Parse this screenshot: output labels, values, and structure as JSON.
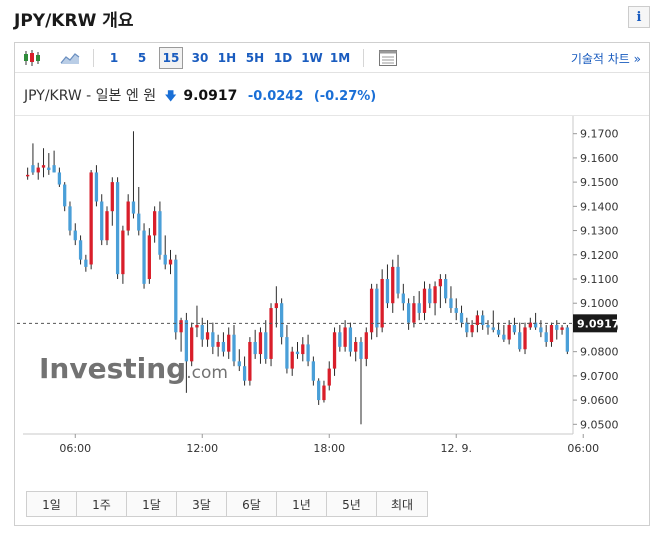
{
  "page": {
    "title": "JPY/KRW 개요",
    "info_label": "i"
  },
  "toolbar": {
    "icons": {
      "candlestick": "candlestick-icon",
      "area": "area-chart-icon",
      "layout": "layout-icon"
    },
    "timeframes": [
      {
        "label": "1",
        "active": false
      },
      {
        "label": "5",
        "active": false
      },
      {
        "label": "15",
        "active": true
      },
      {
        "label": "30",
        "active": false
      },
      {
        "label": "1H",
        "active": false
      },
      {
        "label": "5H",
        "active": false
      },
      {
        "label": "1D",
        "active": false
      },
      {
        "label": "1W",
        "active": false
      },
      {
        "label": "1M",
        "active": false
      }
    ],
    "technical_link": "기술적 차트 »"
  },
  "quote": {
    "name": "JPY/KRW - 일본 엔 원",
    "direction_icon": "arrow-down-icon",
    "price": "9.0917",
    "change": "-0.0242",
    "change_pct": "(-0.27%)"
  },
  "watermark": {
    "brand": "Investing",
    "suffix": ".com"
  },
  "colors": {
    "up": "#d91e2a",
    "down": "#4a9fd8",
    "current_price_bg": "#1a1a1a",
    "link": "#1a5cbf"
  },
  "chart_data": {
    "type": "candlestick",
    "ylim": [
      9.046,
      9.174
    ],
    "y_ticks": [
      "9.1700",
      "9.1600",
      "9.1500",
      "9.1400",
      "9.1300",
      "9.1200",
      "9.1100",
      "9.1000",
      "9.0900",
      "9.0800",
      "9.0700",
      "9.0600",
      "9.0500"
    ],
    "y_tick_values": [
      9.17,
      9.16,
      9.15,
      9.14,
      9.13,
      9.12,
      9.11,
      9.1,
      9.09,
      9.08,
      9.07,
      9.06,
      9.05
    ],
    "x_ticks": [
      "06:00",
      "12:00",
      "18:00",
      "12. 9.",
      "06:00"
    ],
    "x_tick_positions": [
      9,
      33,
      57,
      81,
      105
    ],
    "current_price": 9.0917,
    "current_price_label": "9.0917",
    "ohlc": [
      [
        9.153,
        9.156,
        9.151,
        9.153
      ],
      [
        9.157,
        9.166,
        9.153,
        9.154
      ],
      [
        9.154,
        9.158,
        9.151,
        9.156
      ],
      [
        9.156,
        9.164,
        9.152,
        9.157
      ],
      [
        9.156,
        9.162,
        9.153,
        9.155
      ],
      [
        9.157,
        9.163,
        9.154,
        9.154
      ],
      [
        9.154,
        9.156,
        9.148,
        9.149
      ],
      [
        9.149,
        9.15,
        9.138,
        9.14
      ],
      [
        9.14,
        9.142,
        9.128,
        9.13
      ],
      [
        9.13,
        9.133,
        9.124,
        9.126
      ],
      [
        9.126,
        9.128,
        9.116,
        9.118
      ],
      [
        9.118,
        9.12,
        9.113,
        9.115
      ],
      [
        9.116,
        9.155,
        9.114,
        9.154
      ],
      [
        9.154,
        9.157,
        9.14,
        9.142
      ],
      [
        9.142,
        9.145,
        9.124,
        9.126
      ],
      [
        9.126,
        9.14,
        9.124,
        9.138
      ],
      [
        9.138,
        9.152,
        9.132,
        9.15
      ],
      [
        9.15,
        9.152,
        9.11,
        9.112
      ],
      [
        9.112,
        9.132,
        9.108,
        9.13
      ],
      [
        9.13,
        9.145,
        9.128,
        9.142
      ],
      [
        9.142,
        9.171,
        9.135,
        9.137
      ],
      [
        9.137,
        9.148,
        9.128,
        9.13
      ],
      [
        9.13,
        9.133,
        9.106,
        9.108
      ],
      [
        9.11,
        9.131,
        9.108,
        9.128
      ],
      [
        9.128,
        9.14,
        9.125,
        9.138
      ],
      [
        9.138,
        9.142,
        9.118,
        9.12
      ],
      [
        9.12,
        9.128,
        9.114,
        9.116
      ],
      [
        9.116,
        9.122,
        9.112,
        9.118
      ],
      [
        9.118,
        9.12,
        9.085,
        9.088
      ],
      [
        9.088,
        9.094,
        9.08,
        9.093
      ],
      [
        9.093,
        9.096,
        9.063,
        9.076
      ],
      [
        9.076,
        9.092,
        9.074,
        9.09
      ],
      [
        9.09,
        9.099,
        9.086,
        9.091
      ],
      [
        9.091,
        9.094,
        9.082,
        9.085
      ],
      [
        9.085,
        9.093,
        9.082,
        9.088
      ],
      [
        9.088,
        9.092,
        9.079,
        9.082
      ],
      [
        9.082,
        9.087,
        9.078,
        9.084
      ],
      [
        9.084,
        9.088,
        9.078,
        9.08
      ],
      [
        9.08,
        9.09,
        9.077,
        9.087
      ],
      [
        9.087,
        9.091,
        9.074,
        9.076
      ],
      [
        9.076,
        9.081,
        9.072,
        9.074
      ],
      [
        9.074,
        9.078,
        9.066,
        9.068
      ],
      [
        9.068,
        9.086,
        9.066,
        9.084
      ],
      [
        9.084,
        9.089,
        9.077,
        9.079
      ],
      [
        9.079,
        9.09,
        9.075,
        9.088
      ],
      [
        9.088,
        9.093,
        9.075,
        9.077
      ],
      [
        9.077,
        9.1,
        9.074,
        9.098
      ],
      [
        9.098,
        9.107,
        9.09,
        9.1
      ],
      [
        9.1,
        9.102,
        9.083,
        9.086
      ],
      [
        9.086,
        9.091,
        9.071,
        9.073
      ],
      [
        9.073,
        9.082,
        9.07,
        9.08
      ],
      [
        9.08,
        9.084,
        9.077,
        9.079
      ],
      [
        9.079,
        9.086,
        9.076,
        9.083
      ],
      [
        9.083,
        9.087,
        9.074,
        9.076
      ],
      [
        9.076,
        9.078,
        9.066,
        9.068
      ],
      [
        9.068,
        9.069,
        9.058,
        9.06
      ],
      [
        9.06,
        9.068,
        9.059,
        9.066
      ],
      [
        9.066,
        9.076,
        9.064,
        9.073
      ],
      [
        9.073,
        9.09,
        9.07,
        9.088
      ],
      [
        9.088,
        9.091,
        9.08,
        9.082
      ],
      [
        9.082,
        9.093,
        9.08,
        9.09
      ],
      [
        9.09,
        9.092,
        9.078,
        9.08
      ],
      [
        9.08,
        9.086,
        9.076,
        9.084
      ],
      [
        9.084,
        9.086,
        9.05,
        9.077
      ],
      [
        9.077,
        9.09,
        9.074,
        9.088
      ],
      [
        9.088,
        9.108,
        9.085,
        9.106
      ],
      [
        9.106,
        9.108,
        9.086,
        9.09
      ],
      [
        9.09,
        9.114,
        9.088,
        9.11
      ],
      [
        9.11,
        9.116,
        9.098,
        9.1
      ],
      [
        9.1,
        9.118,
        9.096,
        9.115
      ],
      [
        9.115,
        9.12,
        9.102,
        9.104
      ],
      [
        9.104,
        9.108,
        9.097,
        9.1
      ],
      [
        9.1,
        9.102,
        9.089,
        9.092
      ],
      [
        9.092,
        9.103,
        9.09,
        9.1
      ],
      [
        9.1,
        9.105,
        9.093,
        9.096
      ],
      [
        9.096,
        9.109,
        9.093,
        9.106
      ],
      [
        9.106,
        9.108,
        9.098,
        9.1
      ],
      [
        9.1,
        9.109,
        9.095,
        9.107
      ],
      [
        9.107,
        9.112,
        9.098,
        9.11
      ],
      [
        9.11,
        9.112,
        9.1,
        9.102
      ],
      [
        9.102,
        9.107,
        9.096,
        9.098
      ],
      [
        9.098,
        9.102,
        9.093,
        9.096
      ],
      [
        9.096,
        9.099,
        9.09,
        9.092
      ],
      [
        9.092,
        9.094,
        9.086,
        9.088
      ],
      [
        9.088,
        9.093,
        9.086,
        9.091
      ],
      [
        9.091,
        9.097,
        9.088,
        9.095
      ],
      [
        9.095,
        9.097,
        9.089,
        9.091
      ],
      [
        9.091,
        9.093,
        9.087,
        9.09
      ],
      [
        9.09,
        9.097,
        9.088,
        9.089
      ],
      [
        9.089,
        9.092,
        9.086,
        9.087
      ],
      [
        9.087,
        9.091,
        9.084,
        9.085
      ],
      [
        9.085,
        9.093,
        9.083,
        9.091
      ],
      [
        9.091,
        9.094,
        9.087,
        9.088
      ],
      [
        9.088,
        9.092,
        9.08,
        9.081
      ],
      [
        9.081,
        9.092,
        9.079,
        9.09
      ],
      [
        9.09,
        9.094,
        9.089,
        9.092
      ],
      [
        9.092,
        9.096,
        9.089,
        9.09
      ],
      [
        9.09,
        9.093,
        9.086,
        9.088
      ],
      [
        9.088,
        9.091,
        9.082,
        9.084
      ],
      [
        9.084,
        9.092,
        9.082,
        9.091
      ],
      [
        9.091,
        9.093,
        9.085,
        9.089
      ],
      [
        9.089,
        9.091,
        9.087,
        9.09
      ],
      [
        9.09,
        9.091,
        9.079,
        9.08
      ]
    ]
  },
  "ranges": [
    "1일",
    "1주",
    "1달",
    "3달",
    "6달",
    "1년",
    "5년",
    "최대"
  ]
}
